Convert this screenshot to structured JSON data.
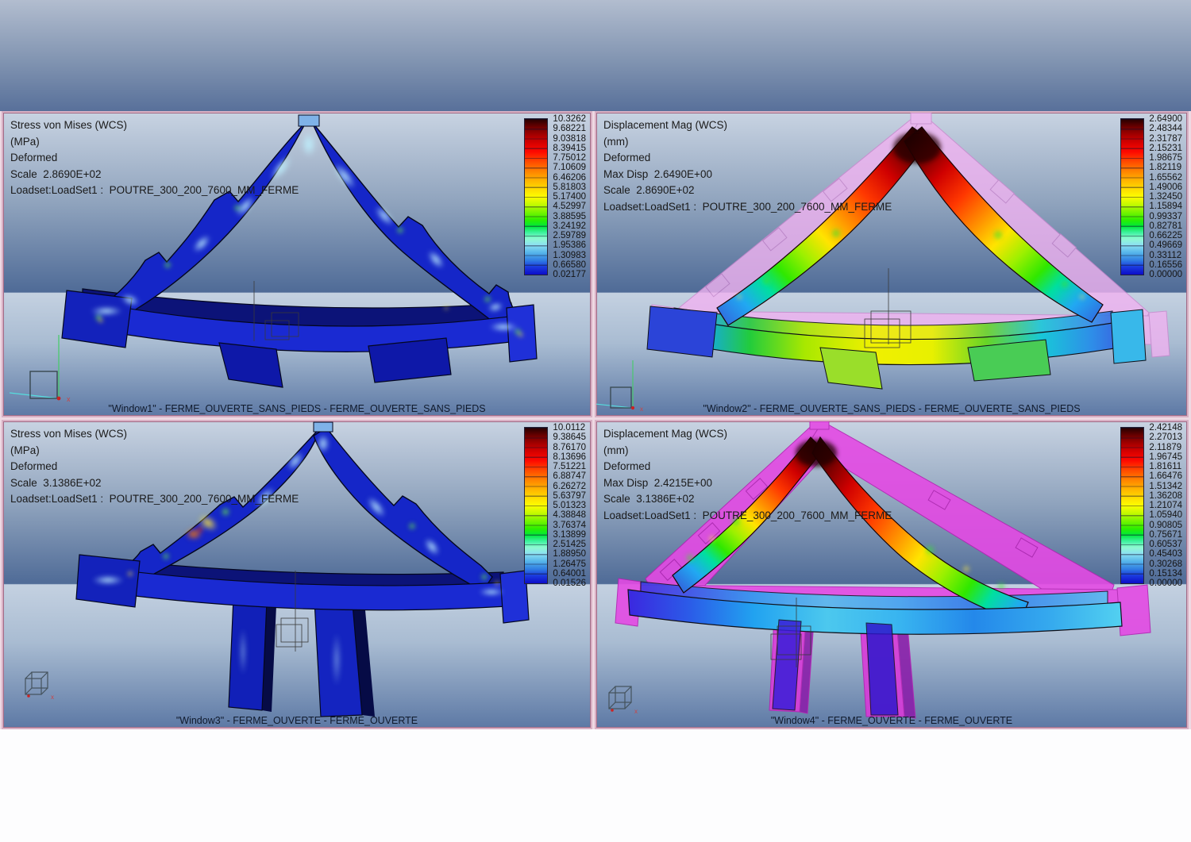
{
  "app": {
    "description": "FEA post-processor multi-window results view (stress and displacement fringe plots of a roof truss)"
  },
  "palette": {
    "window_border_pink": "#d9b0c4",
    "window_border_inner": "#a06b86",
    "gap_background": "#eed9e3",
    "background_top": "#c8d3e2",
    "background_dark": "#4f6b97",
    "bottom_strip": "#fdfdfe",
    "info_text": "#1a1a1a",
    "legend_text": "#141414"
  },
  "windows": [
    {
      "id": "Window1",
      "quantity": "Stress von Mises (WCS)",
      "unit": "MPa",
      "deformed": "Deformed",
      "scale": "2.8690E+02",
      "loadset": "LoadSet1 : POUTRE_300_200_7600_MM_FERME",
      "info_lines": [
        "Stress von Mises (WCS)",
        "(MPa)",
        "Deformed",
        "Scale  2.8690E+02",
        "Loadset:LoadSet1 :  POUTRE_300_200_7600_MM_FERME"
      ],
      "legend_values": [
        "10.3262",
        "9.68221",
        "9.03818",
        "8.39415",
        "7.75012",
        "7.10609",
        "6.46206",
        "5.81803",
        "5.17400",
        "4.52997",
        "3.88595",
        "3.24192",
        "2.59789",
        "1.95386",
        "1.30983",
        "0.66580",
        "0.02177"
      ],
      "caption": "\"Window1\" - FERME_OUVERTE_SANS_PIEDS - FERME_OUVERTE_SANS_PIEDS"
    },
    {
      "id": "Window2",
      "quantity": "Displacement Mag (WCS)",
      "unit": "mm",
      "deformed": "Deformed",
      "max_disp": "2.6490E+00",
      "scale": "2.8690E+02",
      "loadset": "LoadSet1 : POUTRE_300_200_7600_MM_FERME",
      "info_lines": [
        "Displacement Mag (WCS)",
        "(mm)",
        "Deformed",
        "Max Disp  2.6490E+00",
        "Scale  2.8690E+02",
        "Loadset:LoadSet1 :  POUTRE_300_200_7600_MM_FERME"
      ],
      "legend_values": [
        "2.64900",
        "2.48344",
        "2.31787",
        "2.15231",
        "1.98675",
        "1.82119",
        "1.65562",
        "1.49006",
        "1.32450",
        "1.15894",
        "0.99337",
        "0.82781",
        "0.66225",
        "0.49669",
        "0.33112",
        "0.16556",
        "0.00000"
      ],
      "caption": "\"Window2\" - FERME_OUVERTE_SANS_PIEDS - FERME_OUVERTE_SANS_PIEDS"
    },
    {
      "id": "Window3",
      "quantity": "Stress von Mises (WCS)",
      "unit": "MPa",
      "deformed": "Deformed",
      "scale": "3.1386E+02",
      "loadset": "LoadSet1 : POUTRE_300_200_7600_MM_FERME",
      "info_lines": [
        "Stress von Mises (WCS)",
        "(MPa)",
        "Deformed",
        "Scale  3.1386E+02",
        "Loadset:LoadSet1 :  POUTRE_300_200_7600_MM_FERME"
      ],
      "legend_values": [
        "10.0112",
        "9.38645",
        "8.76170",
        "8.13696",
        "7.51221",
        "6.88747",
        "6.26272",
        "5.63797",
        "5.01323",
        "4.38848",
        "3.76374",
        "3.13899",
        "2.51425",
        "1.88950",
        "1.26475",
        "0.64001",
        "0.01526"
      ],
      "caption": "\"Window3\" - FERME_OUVERTE - FERME_OUVERTE"
    },
    {
      "id": "Window4",
      "quantity": "Displacement Mag (WCS)",
      "unit": "mm",
      "deformed": "Deformed",
      "max_disp": "2.4215E+00",
      "scale": "3.1386E+02",
      "loadset": "LoadSet1 : POUTRE_300_200_7600_MM_FERME",
      "info_lines": [
        "Displacement Mag (WCS)",
        "(mm)",
        "Deformed",
        "Max Disp  2.4215E+00",
        "Scale  3.1386E+02",
        "Loadset:LoadSet1 :  POUTRE_300_200_7600_MM_FERME"
      ],
      "legend_values": [
        "2.42148",
        "2.27013",
        "2.11879",
        "1.96745",
        "1.81611",
        "1.66476",
        "1.51342",
        "1.36208",
        "1.21074",
        "1.05940",
        "0.90805",
        "0.75671",
        "0.60537",
        "0.45403",
        "0.30268",
        "0.15134",
        "0.00000"
      ],
      "caption": "\"Window4\" - FERME_OUVERTE - FERME_OUVERTE"
    }
  ]
}
